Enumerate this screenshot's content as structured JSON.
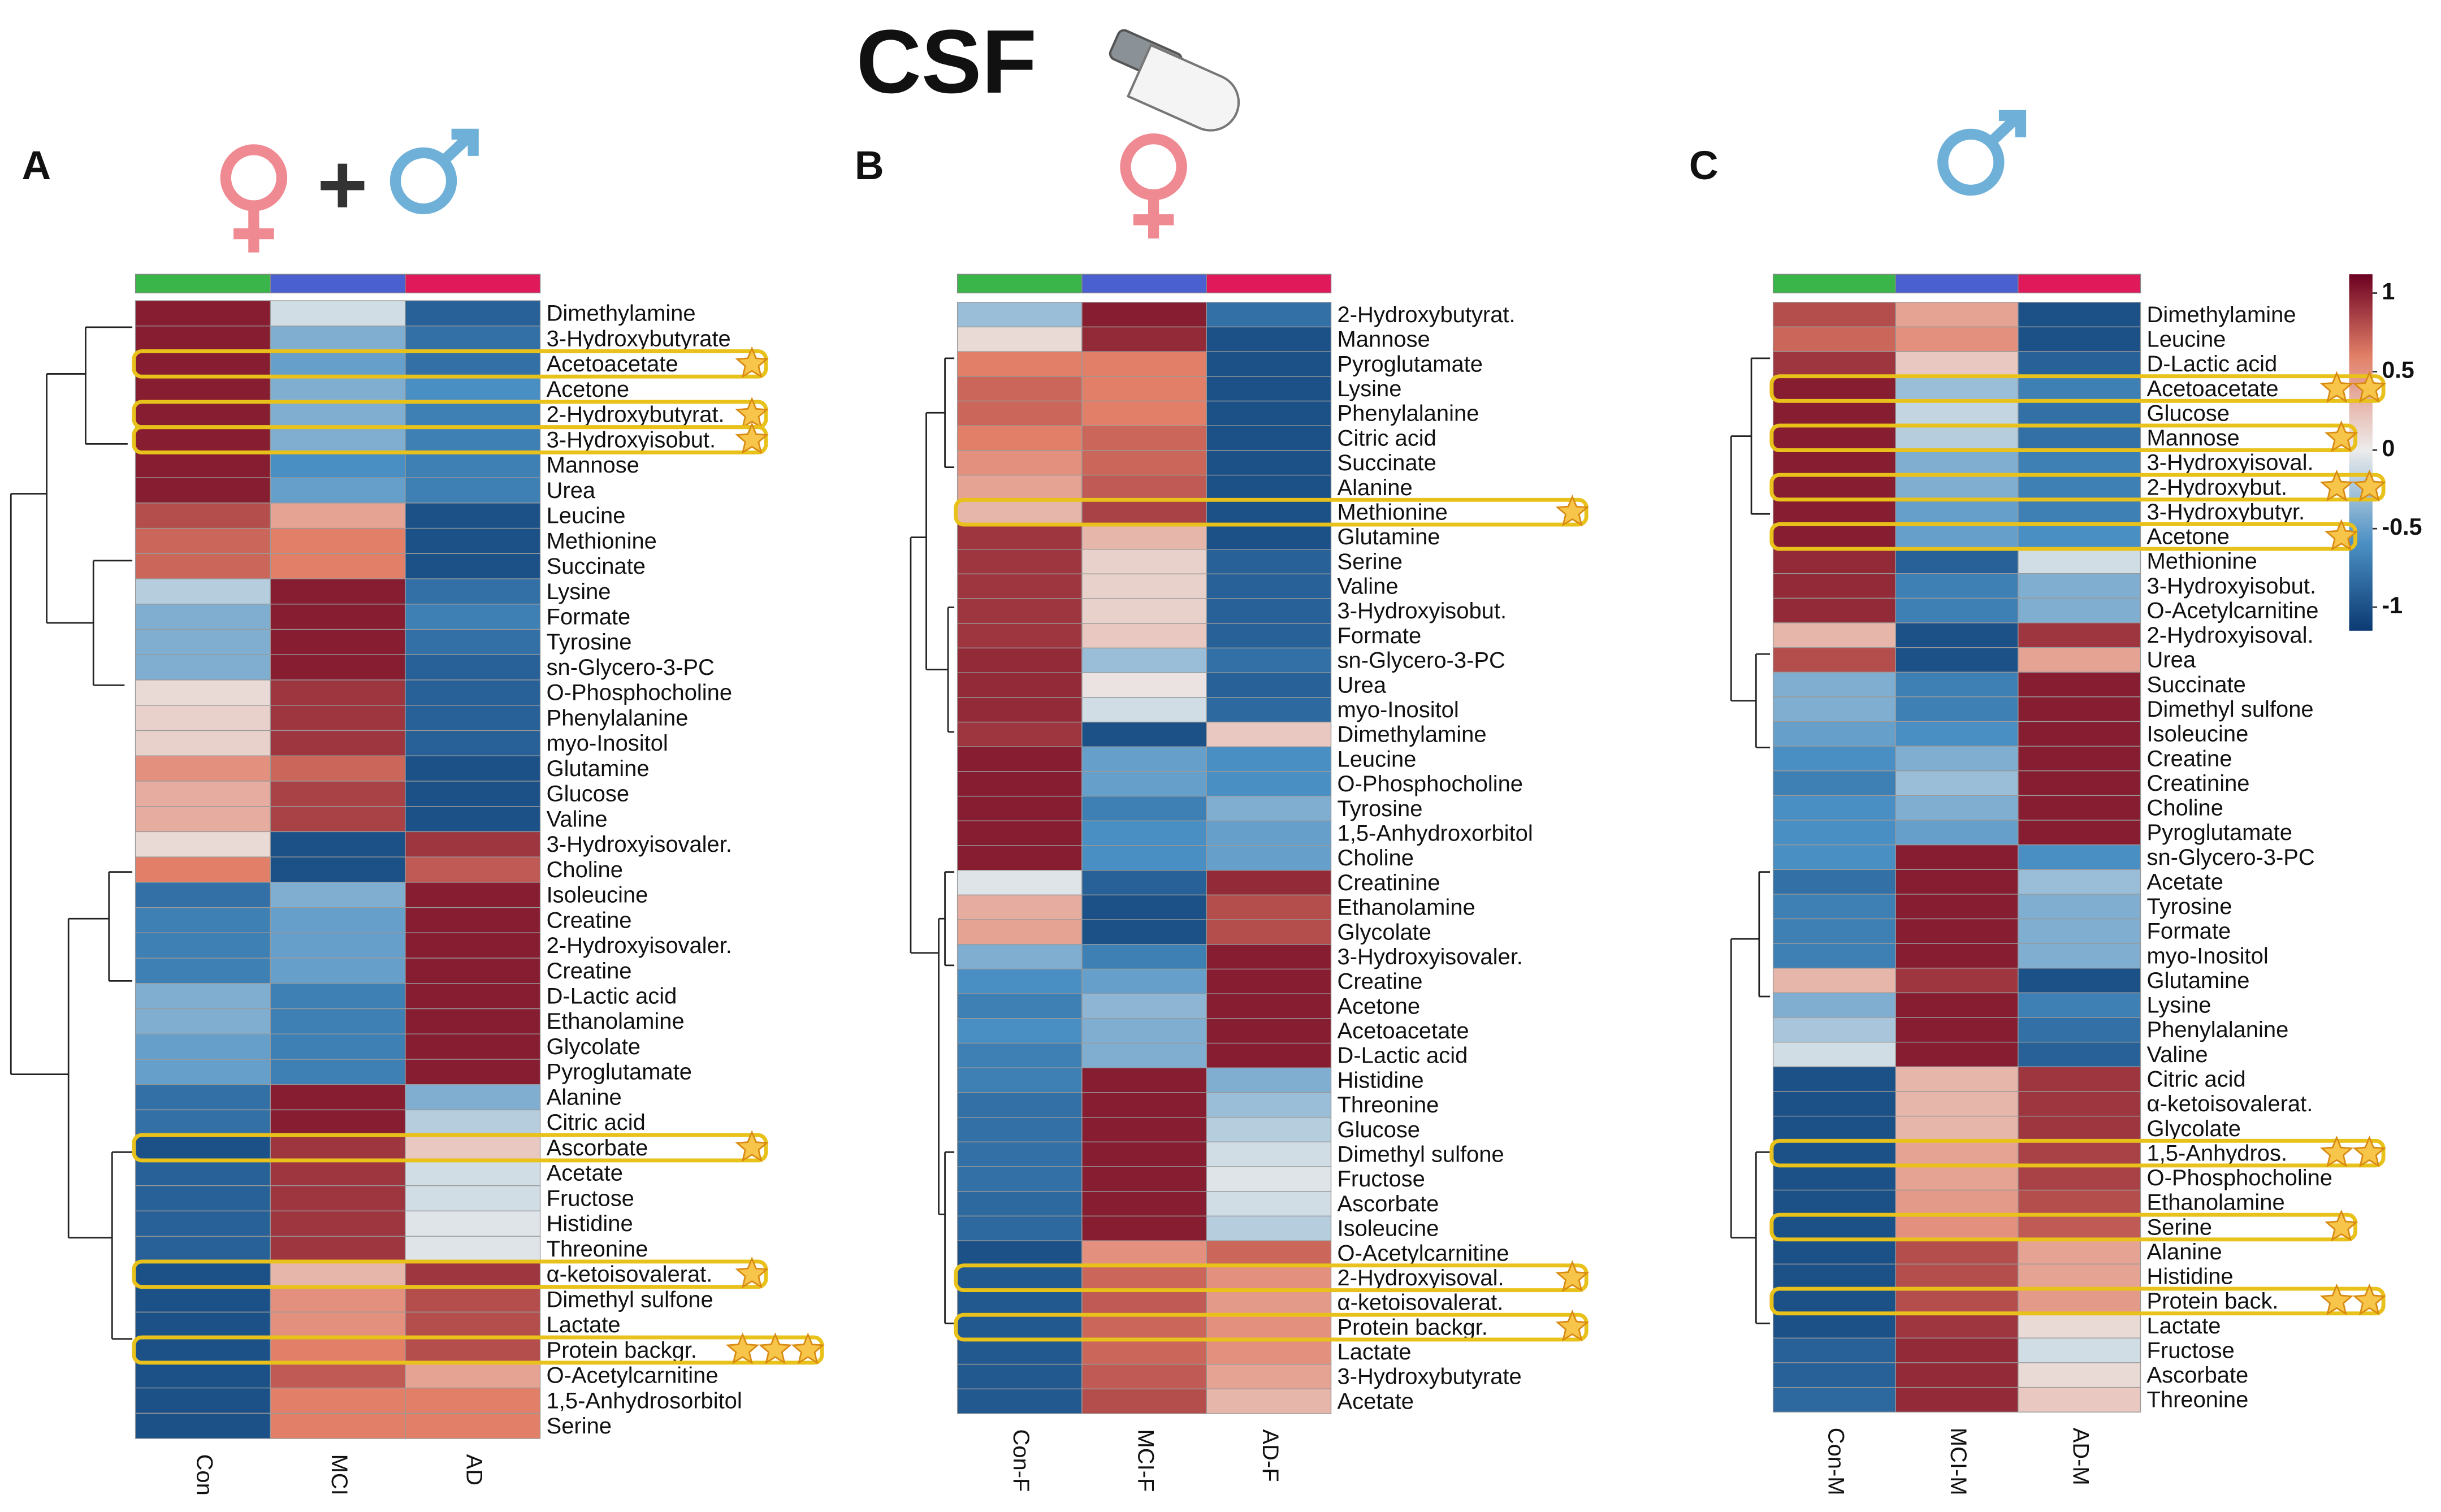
{
  "title": "CSF",
  "colorbar": {
    "lim": [
      -1.15,
      1.12
    ],
    "ticks": [
      1,
      0.5,
      0,
      -0.5,
      -1
    ],
    "stops": [
      [
        -1.15,
        "#0b3a72"
      ],
      [
        -0.6,
        "#4a8fc3"
      ],
      [
        0,
        "#ececec"
      ],
      [
        0.6,
        "#e17f68"
      ],
      [
        1.12,
        "#6b0021"
      ]
    ]
  },
  "chart_data": [
    {
      "type": "heatmap",
      "panel": "A",
      "columns": [
        "Con",
        "MCI",
        "AD"
      ],
      "column_colors": [
        "#3ab54a",
        "#4a5fd0",
        "#e0195a"
      ],
      "rows": [
        "Dimethylamine",
        "3-Hydroxybutyrate",
        "Acetoacetate",
        "Acetone",
        "2-Hydroxybutyrat.",
        "3-Hydroxyisobut.",
        "Mannose",
        "Urea",
        "Leucine",
        "Methionine",
        "Succinate",
        "Lysine",
        "Formate",
        "Tyrosine",
        "sn-Glycero-3-PC",
        "O-Phosphocholine",
        "Phenylalanine",
        "myo-Inositol",
        "Glutamine",
        "Glucose",
        "Valine",
        "3-Hydroxyisovaler.",
        "Choline",
        "Isoleucine",
        "Creatine",
        "2-Hydroxyisovaler.",
        "Creatine",
        "D-Lactic acid",
        "Ethanolamine",
        "Glycolate",
        "Pyroglutamate",
        "Alanine",
        "Citric acid",
        "Ascorbate",
        "Acetate",
        "Fructose",
        "Histidine",
        "Threonine",
        "α-ketoisovalerat.",
        "Dimethyl sulfone",
        "Lactate",
        "Protein backgr.",
        "O-Acetylcarnitine",
        "1,5-Anhydrosorbitol",
        "Serine"
      ],
      "stars": [
        0,
        0,
        1,
        0,
        1,
        1,
        0,
        0,
        0,
        0,
        0,
        0,
        0,
        0,
        0,
        0,
        0,
        0,
        0,
        0,
        0,
        0,
        0,
        0,
        0,
        0,
        0,
        0,
        0,
        0,
        0,
        0,
        0,
        1,
        0,
        0,
        0,
        0,
        1,
        0,
        0,
        3,
        0,
        0,
        0
      ],
      "values": [
        [
          1,
          -0.1,
          -0.9
        ],
        [
          1,
          -0.4,
          -0.8
        ],
        [
          1,
          -0.5,
          -0.8
        ],
        [
          1,
          -0.4,
          -0.6
        ],
        [
          1,
          -0.4,
          -0.7
        ],
        [
          1,
          -0.4,
          -0.7
        ],
        [
          1,
          -0.6,
          -0.7
        ],
        [
          1,
          -0.5,
          -0.7
        ],
        [
          0.8,
          0.4,
          -1
        ],
        [
          0.7,
          0.6,
          -1
        ],
        [
          0.7,
          0.6,
          -1
        ],
        [
          -0.2,
          1,
          -0.8
        ],
        [
          -0.4,
          1,
          -0.7
        ],
        [
          -0.4,
          1,
          -0.8
        ],
        [
          -0.4,
          1,
          -0.9
        ],
        [
          0.1,
          0.9,
          -0.9
        ],
        [
          0.15,
          0.9,
          -0.9
        ],
        [
          0.15,
          0.9,
          -0.9
        ],
        [
          0.5,
          0.7,
          -1
        ],
        [
          0.35,
          0.85,
          -1
        ],
        [
          0.35,
          0.85,
          -1
        ],
        [
          0.1,
          -1,
          0.9
        ],
        [
          0.6,
          -1,
          0.75
        ],
        [
          -0.8,
          -0.4,
          1
        ],
        [
          -0.7,
          -0.5,
          1
        ],
        [
          -0.7,
          -0.5,
          1
        ],
        [
          -0.7,
          -0.5,
          1
        ],
        [
          -0.4,
          -0.7,
          1
        ],
        [
          -0.4,
          -0.7,
          1
        ],
        [
          -0.5,
          -0.7,
          1
        ],
        [
          -0.5,
          -0.7,
          1
        ],
        [
          -0.8,
          1,
          -0.4
        ],
        [
          -0.8,
          1,
          -0.2
        ],
        [
          -1,
          0.9,
          0.2
        ],
        [
          -0.9,
          0.9,
          -0.1
        ],
        [
          -0.9,
          0.9,
          -0.1
        ],
        [
          -0.9,
          0.9,
          -0.05
        ],
        [
          -0.9,
          0.9,
          -0.05
        ],
        [
          -1,
          0.3,
          0.9
        ],
        [
          -1,
          0.5,
          0.8
        ],
        [
          -1,
          0.5,
          0.8
        ],
        [
          -1,
          0.6,
          0.8
        ],
        [
          -1,
          0.75,
          0.4
        ],
        [
          -1,
          0.6,
          0.6
        ],
        [
          -1,
          0.6,
          0.6
        ]
      ]
    },
    {
      "type": "heatmap",
      "panel": "B",
      "columns": [
        "Con-F",
        "MCI-F",
        "AD-F"
      ],
      "column_colors": [
        "#3ab54a",
        "#4a5fd0",
        "#e0195a"
      ],
      "rows": [
        "2-Hydroxybutyrat.",
        "Mannose",
        "Pyroglutamate",
        "Lysine",
        "Phenylalanine",
        "Citric acid",
        "Succinate",
        "Alanine",
        "Methionine",
        "Glutamine",
        "Serine",
        "Valine",
        "3-Hydroxyisobut.",
        "Formate",
        "sn-Glycero-3-PC",
        "Urea",
        "myo-Inositol",
        "Dimethylamine",
        "Leucine",
        "O-Phosphocholine",
        "Tyrosine",
        "1,5-Anhydroxorbitol",
        "Choline",
        "Creatinine",
        "Ethanolamine",
        "Glycolate",
        "3-Hydroxyisovaler.",
        "Creatine",
        "Acetone",
        "Acetoacetate",
        "D-Lactic acid",
        "Histidine",
        "Threonine",
        "Glucose",
        "Dimethyl sulfone",
        "Fructose",
        "Ascorbate",
        "Isoleucine",
        "O-Acetylcarnitine",
        "2-Hydroxyisoval.",
        "α-ketoisovalerat.",
        "Protein backgr.",
        "Lactate",
        "3-Hydroxybutyrate",
        "Acetate"
      ],
      "stars": [
        0,
        0,
        0,
        0,
        0,
        0,
        0,
        0,
        1,
        0,
        0,
        0,
        0,
        0,
        0,
        0,
        0,
        0,
        0,
        0,
        0,
        0,
        0,
        0,
        0,
        0,
        0,
        0,
        0,
        0,
        0,
        0,
        0,
        0,
        0,
        0,
        0,
        0,
        0,
        1,
        0,
        1,
        0,
        0,
        0
      ],
      "values": [
        [
          -0.3,
          1,
          -0.8
        ],
        [
          0.1,
          0.95,
          -1
        ],
        [
          0.6,
          0.6,
          -1
        ],
        [
          0.7,
          0.6,
          -1
        ],
        [
          0.7,
          0.6,
          -1
        ],
        [
          0.6,
          0.7,
          -1
        ],
        [
          0.5,
          0.7,
          -1
        ],
        [
          0.4,
          0.75,
          -1
        ],
        [
          0.3,
          0.85,
          -1
        ],
        [
          0.9,
          0.3,
          -1
        ],
        [
          0.9,
          0.15,
          -0.9
        ],
        [
          0.9,
          0.15,
          -0.9
        ],
        [
          0.9,
          0.15,
          -0.9
        ],
        [
          0.9,
          0.2,
          -0.9
        ],
        [
          0.95,
          -0.3,
          -0.8
        ],
        [
          0.95,
          0.05,
          -0.9
        ],
        [
          0.95,
          -0.1,
          -0.85
        ],
        [
          0.9,
          -1,
          0.2
        ],
        [
          1,
          -0.5,
          -0.6
        ],
        [
          1,
          -0.5,
          -0.6
        ],
        [
          1,
          -0.7,
          -0.4
        ],
        [
          1,
          -0.6,
          -0.5
        ],
        [
          1,
          -0.6,
          -0.5
        ],
        [
          -0.05,
          -0.9,
          0.95
        ],
        [
          0.35,
          -1,
          0.8
        ],
        [
          0.4,
          -1,
          0.8
        ],
        [
          -0.4,
          -0.7,
          1
        ],
        [
          -0.6,
          -0.5,
          1
        ],
        [
          -0.7,
          -0.35,
          1
        ],
        [
          -0.6,
          -0.4,
          1
        ],
        [
          -0.7,
          -0.4,
          1
        ],
        [
          -0.7,
          1,
          -0.4
        ],
        [
          -0.8,
          1,
          -0.3
        ],
        [
          -0.8,
          1,
          -0.2
        ],
        [
          -0.8,
          1,
          -0.1
        ],
        [
          -0.8,
          1,
          -0.05
        ],
        [
          -0.85,
          1,
          -0.1
        ],
        [
          -0.85,
          1,
          -0.2
        ],
        [
          -1,
          0.5,
          0.7
        ],
        [
          -0.95,
          0.7,
          0.5
        ],
        [
          -0.95,
          0.75,
          0.45
        ],
        [
          -0.95,
          0.7,
          0.5
        ],
        [
          -0.95,
          0.7,
          0.5
        ],
        [
          -0.95,
          0.75,
          0.4
        ],
        [
          -0.95,
          0.8,
          0.3
        ]
      ]
    },
    {
      "type": "heatmap",
      "panel": "C",
      "columns": [
        "Con-M",
        "MCI-M",
        "AD-M"
      ],
      "column_colors": [
        "#3ab54a",
        "#4a5fd0",
        "#e0195a"
      ],
      "rows": [
        "Dimethylamine",
        "Leucine",
        "D-Lactic acid",
        "Acetoacetate",
        "Glucose",
        "Mannose",
        "3-Hydroxyisoval.",
        "2-Hydroxybut.",
        "3-Hydroxybutyr.",
        "Acetone",
        "Methionine",
        "3-Hydroxyisobut.",
        "O-Acetylcarnitine",
        "2-Hydroxyisoval.",
        "Urea",
        "Succinate",
        "Dimethyl sulfone",
        "Isoleucine",
        "Creatine",
        "Creatinine",
        "Choline",
        "Pyroglutamate",
        "sn-Glycero-3-PC",
        "Acetate",
        "Tyrosine",
        "Formate",
        "myo-Inositol",
        "Glutamine",
        "Lysine",
        "Phenylalanine",
        "Valine",
        "Citric acid",
        "α-ketoisovalerat.",
        "Glycolate",
        "1,5-Anhydros.",
        "O-Phosphocholine",
        "Ethanolamine",
        "Serine",
        "Alanine",
        "Histidine",
        "Protein back.",
        "Lactate",
        "Fructose",
        "Ascorbate",
        "Threonine"
      ],
      "stars": [
        0,
        0,
        0,
        2,
        0,
        1,
        0,
        2,
        0,
        1,
        0,
        0,
        0,
        0,
        0,
        0,
        0,
        0,
        0,
        0,
        0,
        0,
        0,
        0,
        0,
        0,
        0,
        0,
        0,
        0,
        0,
        0,
        0,
        0,
        2,
        0,
        0,
        1,
        0,
        0,
        2,
        0,
        0,
        0,
        0
      ],
      "values": [
        [
          0.8,
          0.4,
          -1
        ],
        [
          0.7,
          0.5,
          -1
        ],
        [
          0.9,
          0.2,
          -0.9
        ],
        [
          1,
          -0.3,
          -0.7
        ],
        [
          1,
          -0.15,
          -0.8
        ],
        [
          1,
          -0.2,
          -0.8
        ],
        [
          1,
          -0.4,
          -0.7
        ],
        [
          1,
          -0.4,
          -0.7
        ],
        [
          1,
          -0.5,
          -0.7
        ],
        [
          1,
          -0.5,
          -0.6
        ],
        [
          0.95,
          -0.9,
          -0.1
        ],
        [
          0.95,
          -0.7,
          -0.4
        ],
        [
          0.95,
          -0.7,
          -0.4
        ],
        [
          0.3,
          -1,
          0.9
        ],
        [
          0.8,
          -1,
          0.4
        ],
        [
          -0.4,
          -0.7,
          1
        ],
        [
          -0.4,
          -0.7,
          1
        ],
        [
          -0.5,
          -0.6,
          1
        ],
        [
          -0.6,
          -0.4,
          1
        ],
        [
          -0.7,
          -0.3,
          1
        ],
        [
          -0.6,
          -0.4,
          1
        ],
        [
          -0.6,
          -0.5,
          1
        ],
        [
          -0.6,
          1,
          -0.6
        ],
        [
          -0.8,
          1,
          -0.3
        ],
        [
          -0.7,
          1,
          -0.4
        ],
        [
          -0.7,
          1,
          -0.4
        ],
        [
          -0.7,
          1,
          -0.4
        ],
        [
          0.3,
          0.9,
          -1
        ],
        [
          -0.4,
          1,
          -0.7
        ],
        [
          -0.25,
          1,
          -0.8
        ],
        [
          -0.1,
          1,
          -0.9
        ],
        [
          -1,
          0.3,
          0.9
        ],
        [
          -1,
          0.3,
          0.9
        ],
        [
          -1,
          0.3,
          0.9
        ],
        [
          -1,
          0.4,
          0.85
        ],
        [
          -1,
          0.4,
          0.85
        ],
        [
          -1,
          0.45,
          0.8
        ],
        [
          -1,
          0.5,
          0.75
        ],
        [
          -1,
          0.8,
          0.4
        ],
        [
          -1,
          0.8,
          0.4
        ],
        [
          -1,
          0.8,
          0.45
        ],
        [
          -1,
          0.9,
          0.1
        ],
        [
          -0.9,
          0.95,
          -0.1
        ],
        [
          -0.9,
          0.95,
          0.1
        ],
        [
          -0.85,
          0.95,
          0.2
        ]
      ]
    }
  ]
}
